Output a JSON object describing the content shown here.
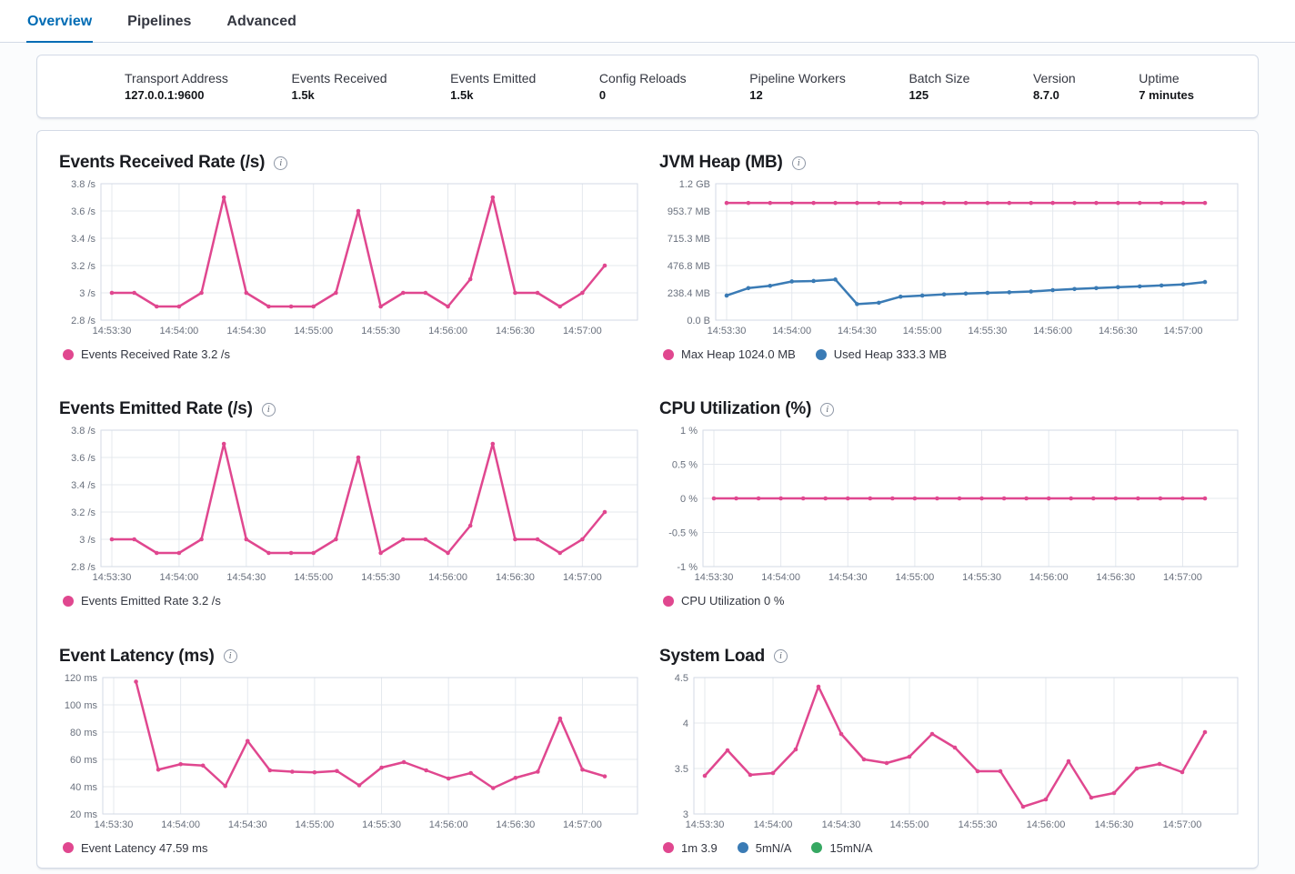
{
  "tabs": {
    "items": [
      {
        "label": "Overview",
        "active": true
      },
      {
        "label": "Pipelines",
        "active": false
      },
      {
        "label": "Advanced",
        "active": false
      }
    ]
  },
  "stats": {
    "items": [
      {
        "label": "Transport Address",
        "value": "127.0.0.1:9600"
      },
      {
        "label": "Events Received",
        "value": "1.5k"
      },
      {
        "label": "Events Emitted",
        "value": "1.5k"
      },
      {
        "label": "Config Reloads",
        "value": "0"
      },
      {
        "label": "Pipeline Workers",
        "value": "12"
      },
      {
        "label": "Batch Size",
        "value": "125"
      },
      {
        "label": "Version",
        "value": "8.7.0"
      },
      {
        "label": "Uptime",
        "value": "7 minutes"
      }
    ]
  },
  "colors": {
    "pink": "#e0478f",
    "blue": "#3a7bb5",
    "green": "#36a862",
    "accent": "#006bb4"
  },
  "chart_data": [
    {
      "type": "line",
      "title": "Events Received Rate (/s)",
      "x": [
        "14:53:30",
        "14:53:40",
        "14:53:50",
        "14:54:00",
        "14:54:10",
        "14:54:20",
        "14:54:30",
        "14:54:40",
        "14:54:50",
        "14:55:00",
        "14:55:10",
        "14:55:20",
        "14:55:30",
        "14:55:40",
        "14:55:50",
        "14:56:00",
        "14:56:10",
        "14:56:20",
        "14:56:30",
        "14:56:40",
        "14:56:50",
        "14:57:00",
        "14:57:10"
      ],
      "ylim": [
        2.8,
        3.8
      ],
      "yticks": [
        {
          "v": 3.8,
          "label": "3.8 /s"
        },
        {
          "v": 3.6,
          "label": "3.6 /s"
        },
        {
          "v": 3.4,
          "label": "3.4 /s"
        },
        {
          "v": 3.2,
          "label": "3.2 /s"
        },
        {
          "v": 3.0,
          "label": "3 /s"
        },
        {
          "v": 2.8,
          "label": "2.8 /s"
        }
      ],
      "series": [
        {
          "name": "Events Received Rate",
          "color_key": "pink",
          "values": [
            3,
            3,
            2.9,
            2.9,
            3,
            3.7,
            3,
            2.9,
            2.9,
            2.9,
            3,
            3.6,
            2.9,
            3,
            3,
            2.9,
            3.1,
            3.7,
            3,
            3,
            2.9,
            3,
            3.2
          ]
        }
      ],
      "legend": [
        {
          "color": "pink",
          "label": "Events Received Rate 3.2 /s"
        }
      ]
    },
    {
      "type": "line",
      "title": "JVM Heap (MB)",
      "x": [
        "14:53:30",
        "14:53:40",
        "14:53:50",
        "14:54:00",
        "14:54:10",
        "14:54:20",
        "14:54:30",
        "14:54:40",
        "14:54:50",
        "14:55:00",
        "14:55:10",
        "14:55:20",
        "14:55:30",
        "14:55:40",
        "14:55:50",
        "14:56:00",
        "14:56:10",
        "14:56:20",
        "14:56:30",
        "14:56:40",
        "14:56:50",
        "14:57:00",
        "14:57:10"
      ],
      "ylim": [
        0,
        1192.09
      ],
      "yticks": [
        {
          "v": 1192.09,
          "label": "1.2 GB"
        },
        {
          "v": 953.67,
          "label": "953.7 MB"
        },
        {
          "v": 715.26,
          "label": "715.3 MB"
        },
        {
          "v": 476.84,
          "label": "476.8 MB"
        },
        {
          "v": 238.42,
          "label": "238.4 MB"
        },
        {
          "v": 0,
          "label": "0.0 B"
        }
      ],
      "series": [
        {
          "name": "Max Heap",
          "color_key": "pink",
          "values": [
            1024,
            1024,
            1024,
            1024,
            1024,
            1024,
            1024,
            1024,
            1024,
            1024,
            1024,
            1024,
            1024,
            1024,
            1024,
            1024,
            1024,
            1024,
            1024,
            1024,
            1024,
            1024,
            1024
          ]
        },
        {
          "name": "Used Heap",
          "color_key": "blue",
          "values": [
            215,
            280,
            300,
            338,
            342,
            355,
            140,
            152,
            205,
            215,
            225,
            232,
            238,
            243,
            250,
            262,
            272,
            280,
            288,
            295,
            303,
            312,
            333
          ]
        }
      ],
      "legend": [
        {
          "color": "pink",
          "label": "Max Heap 1024.0 MB"
        },
        {
          "color": "blue",
          "label": "Used Heap 333.3 MB"
        }
      ]
    },
    {
      "type": "line",
      "title": "Events Emitted Rate (/s)",
      "x": [
        "14:53:30",
        "14:53:40",
        "14:53:50",
        "14:54:00",
        "14:54:10",
        "14:54:20",
        "14:54:30",
        "14:54:40",
        "14:54:50",
        "14:55:00",
        "14:55:10",
        "14:55:20",
        "14:55:30",
        "14:55:40",
        "14:55:50",
        "14:56:00",
        "14:56:10",
        "14:56:20",
        "14:56:30",
        "14:56:40",
        "14:56:50",
        "14:57:00",
        "14:57:10"
      ],
      "ylim": [
        2.8,
        3.8
      ],
      "yticks": [
        {
          "v": 3.8,
          "label": "3.8 /s"
        },
        {
          "v": 3.6,
          "label": "3.6 /s"
        },
        {
          "v": 3.4,
          "label": "3.4 /s"
        },
        {
          "v": 3.2,
          "label": "3.2 /s"
        },
        {
          "v": 3.0,
          "label": "3 /s"
        },
        {
          "v": 2.8,
          "label": "2.8 /s"
        }
      ],
      "series": [
        {
          "name": "Events Emitted Rate",
          "color_key": "pink",
          "values": [
            3,
            3,
            2.9,
            2.9,
            3,
            3.7,
            3,
            2.9,
            2.9,
            2.9,
            3,
            3.6,
            2.9,
            3,
            3,
            2.9,
            3.1,
            3.7,
            3,
            3,
            2.9,
            3,
            3.2
          ]
        }
      ],
      "legend": [
        {
          "color": "pink",
          "label": "Events Emitted Rate 3.2 /s"
        }
      ]
    },
    {
      "type": "line",
      "title": "CPU Utilization (%)",
      "x": [
        "14:53:30",
        "14:53:40",
        "14:53:50",
        "14:54:00",
        "14:54:10",
        "14:54:20",
        "14:54:30",
        "14:54:40",
        "14:54:50",
        "14:55:00",
        "14:55:10",
        "14:55:20",
        "14:55:30",
        "14:55:40",
        "14:55:50",
        "14:56:00",
        "14:56:10",
        "14:56:20",
        "14:56:30",
        "14:56:40",
        "14:56:50",
        "14:57:00",
        "14:57:10"
      ],
      "ylim": [
        -1,
        1
      ],
      "yticks": [
        {
          "v": 1,
          "label": "1 %"
        },
        {
          "v": 0.5,
          "label": "0.5 %"
        },
        {
          "v": 0,
          "label": "0 %"
        },
        {
          "v": -0.5,
          "label": "-0.5 %"
        },
        {
          "v": -1,
          "label": "-1 %"
        }
      ],
      "series": [
        {
          "name": "CPU Utilization",
          "color_key": "pink",
          "values": [
            0,
            0,
            0,
            0,
            0,
            0,
            0,
            0,
            0,
            0,
            0,
            0,
            0,
            0,
            0,
            0,
            0,
            0,
            0,
            0,
            0,
            0,
            0
          ]
        }
      ],
      "legend": [
        {
          "color": "pink",
          "label": "CPU Utilization 0 %"
        }
      ]
    },
    {
      "type": "line",
      "title": "Event Latency (ms)",
      "x": [
        "14:53:30",
        "14:53:40",
        "14:53:50",
        "14:54:00",
        "14:54:10",
        "14:54:20",
        "14:54:30",
        "14:54:40",
        "14:54:50",
        "14:55:00",
        "14:55:10",
        "14:55:20",
        "14:55:30",
        "14:55:40",
        "14:55:50",
        "14:56:00",
        "14:56:10",
        "14:56:20",
        "14:56:30",
        "14:56:40",
        "14:56:50",
        "14:57:00",
        "14:57:10"
      ],
      "ylim": [
        20,
        120
      ],
      "yticks": [
        {
          "v": 120,
          "label": "120 ms"
        },
        {
          "v": 100,
          "label": "100 ms"
        },
        {
          "v": 80,
          "label": "80 ms"
        },
        {
          "v": 60,
          "label": "60 ms"
        },
        {
          "v": 40,
          "label": "40 ms"
        },
        {
          "v": 20,
          "label": "20 ms"
        }
      ],
      "series": [
        {
          "name": "Event Latency",
          "color_key": "pink",
          "values": [
            null,
            117,
            52.5,
            56.5,
            55.5,
            40.5,
            73.5,
            52,
            51,
            50.5,
            51.5,
            41,
            54,
            58,
            52,
            46,
            50,
            39,
            46.5,
            51,
            90,
            52.5,
            47.59
          ]
        }
      ],
      "legend": [
        {
          "color": "pink",
          "label": "Event Latency 47.59 ms"
        }
      ]
    },
    {
      "type": "line",
      "title": "System Load",
      "x": [
        "14:53:30",
        "14:53:40",
        "14:53:50",
        "14:54:00",
        "14:54:10",
        "14:54:20",
        "14:54:30",
        "14:54:40",
        "14:54:50",
        "14:55:00",
        "14:55:10",
        "14:55:20",
        "14:55:30",
        "14:55:40",
        "14:55:50",
        "14:56:00",
        "14:56:10",
        "14:56:20",
        "14:56:30",
        "14:56:40",
        "14:56:50",
        "14:57:00",
        "14:57:10"
      ],
      "ylim": [
        3,
        4.5
      ],
      "yticks": [
        {
          "v": 4.5,
          "label": "4.5"
        },
        {
          "v": 4,
          "label": "4"
        },
        {
          "v": 3.5,
          "label": "3.5"
        },
        {
          "v": 3,
          "label": "3"
        }
      ],
      "series": [
        {
          "name": "1m",
          "color_key": "pink",
          "values": [
            3.42,
            3.7,
            3.43,
            3.45,
            3.71,
            4.4,
            3.88,
            3.6,
            3.56,
            3.63,
            3.88,
            3.73,
            3.47,
            3.47,
            3.08,
            3.16,
            3.58,
            3.18,
            3.23,
            3.5,
            3.55,
            3.46,
            3.9
          ]
        }
      ],
      "legend": [
        {
          "color": "pink",
          "label": "1m 3.9"
        },
        {
          "color": "blue",
          "label": "5mN/A"
        },
        {
          "color": "green",
          "label": "15mN/A"
        }
      ]
    }
  ]
}
